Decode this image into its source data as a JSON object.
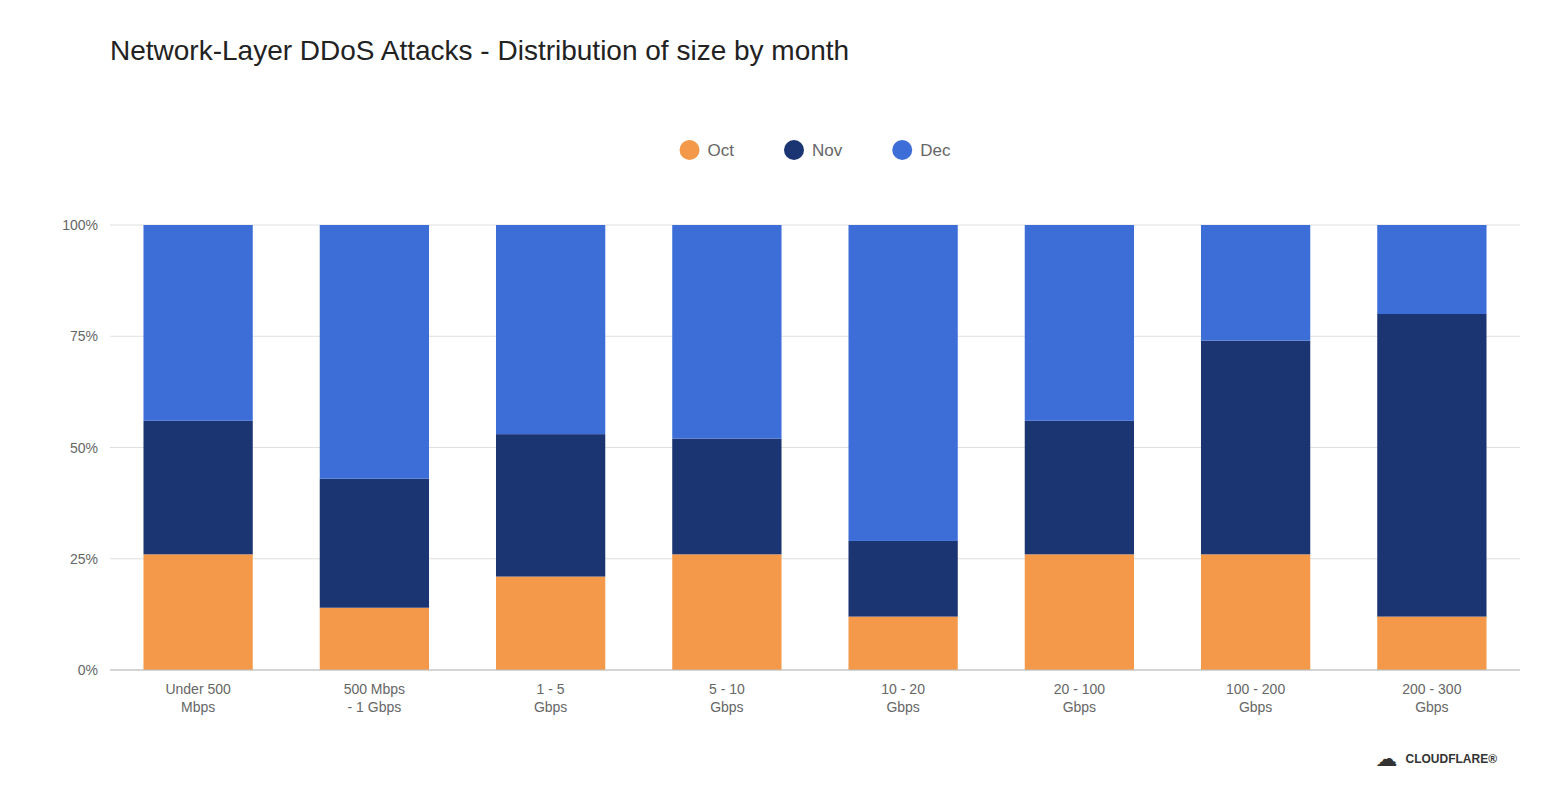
{
  "chart_data": {
    "type": "bar",
    "stacked": true,
    "title": "Network-Layer DDoS Attacks - Distribution of size by month",
    "categories": [
      "Under 500\nMbps",
      "500 Mbps\n- 1 Gbps",
      "1 - 5\nGbps",
      "5 - 10\nGbps",
      "10 - 20\nGbps",
      "20 - 100\nGbps",
      "100 - 200\nGbps",
      "200 - 300\nGbps"
    ],
    "series": [
      {
        "name": "Oct",
        "color": "#F4994A",
        "values": [
          26,
          14,
          21,
          26,
          12,
          26,
          26,
          12
        ]
      },
      {
        "name": "Nov",
        "color": "#1B3472",
        "values": [
          30,
          29,
          32,
          26,
          17,
          30,
          48,
          68
        ]
      },
      {
        "name": "Dec",
        "color": "#3D6ED8",
        "values": [
          44,
          57,
          47,
          48,
          71,
          44,
          26,
          20
        ]
      }
    ],
    "ylim": [
      0,
      100
    ],
    "yticks": [
      {
        "value": 0,
        "label": "0%"
      },
      {
        "value": 25,
        "label": "25%"
      },
      {
        "value": 50,
        "label": "50%"
      },
      {
        "value": 75,
        "label": "75%"
      },
      {
        "value": 100,
        "label": "100%"
      }
    ],
    "grid": true,
    "legend": "top",
    "annotations": [
      "☁",
      "CLOUDFLARE®"
    ]
  }
}
